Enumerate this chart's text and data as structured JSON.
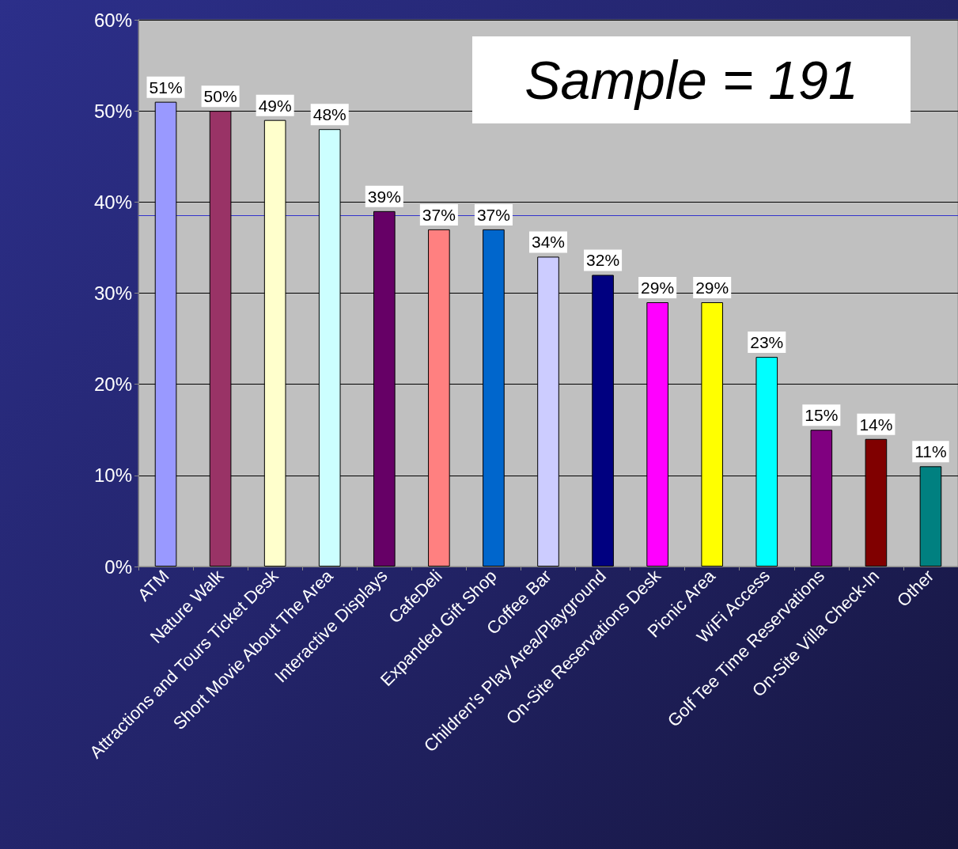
{
  "chart_data": {
    "type": "bar",
    "categories": [
      "ATM",
      "Nature Walk",
      "Attractions and Tours Ticket Desk",
      "Short Movie About The Area",
      "Interactive Displays",
      "CafeDeli",
      "Expanded Gift Shop",
      "Coffee Bar",
      "Children's Play Area/Playground",
      "On-Site Reservations Desk",
      "Picnic Area",
      "WiFi Access",
      "Golf Tee Time Reservations",
      "On-Site Villa Check-In",
      "Other"
    ],
    "values": [
      51,
      50,
      49,
      48,
      39,
      37,
      37,
      34,
      32,
      29,
      29,
      23,
      15,
      14,
      11
    ],
    "value_labels": [
      "51%",
      "50%",
      "49%",
      "48%",
      "39%",
      "37%",
      "37%",
      "34%",
      "32%",
      "29%",
      "29%",
      "23%",
      "15%",
      "14%",
      "11%"
    ],
    "colors": [
      "#9999ff",
      "#993366",
      "#ffffcc",
      "#ccffff",
      "#660066",
      "#ff8080",
      "#0066cc",
      "#ccccff",
      "#000080",
      "#ff00ff",
      "#ffff00",
      "#00ffff",
      "#800080",
      "#800000",
      "#008080"
    ],
    "ylim": [
      0,
      60
    ],
    "yticks": [
      {
        "value": 0,
        "label": "0%"
      },
      {
        "value": 10,
        "label": "10%"
      },
      {
        "value": 20,
        "label": "20%"
      },
      {
        "value": 30,
        "label": "30%"
      },
      {
        "value": 40,
        "label": "40%"
      },
      {
        "value": 50,
        "label": "50%"
      },
      {
        "value": 60,
        "label": "60%"
      }
    ],
    "grid": "y",
    "ref_lines": [
      {
        "axis": "y",
        "value": 38.5,
        "color": "#3333cc"
      }
    ],
    "annotations": [
      "Sample = 191"
    ]
  }
}
